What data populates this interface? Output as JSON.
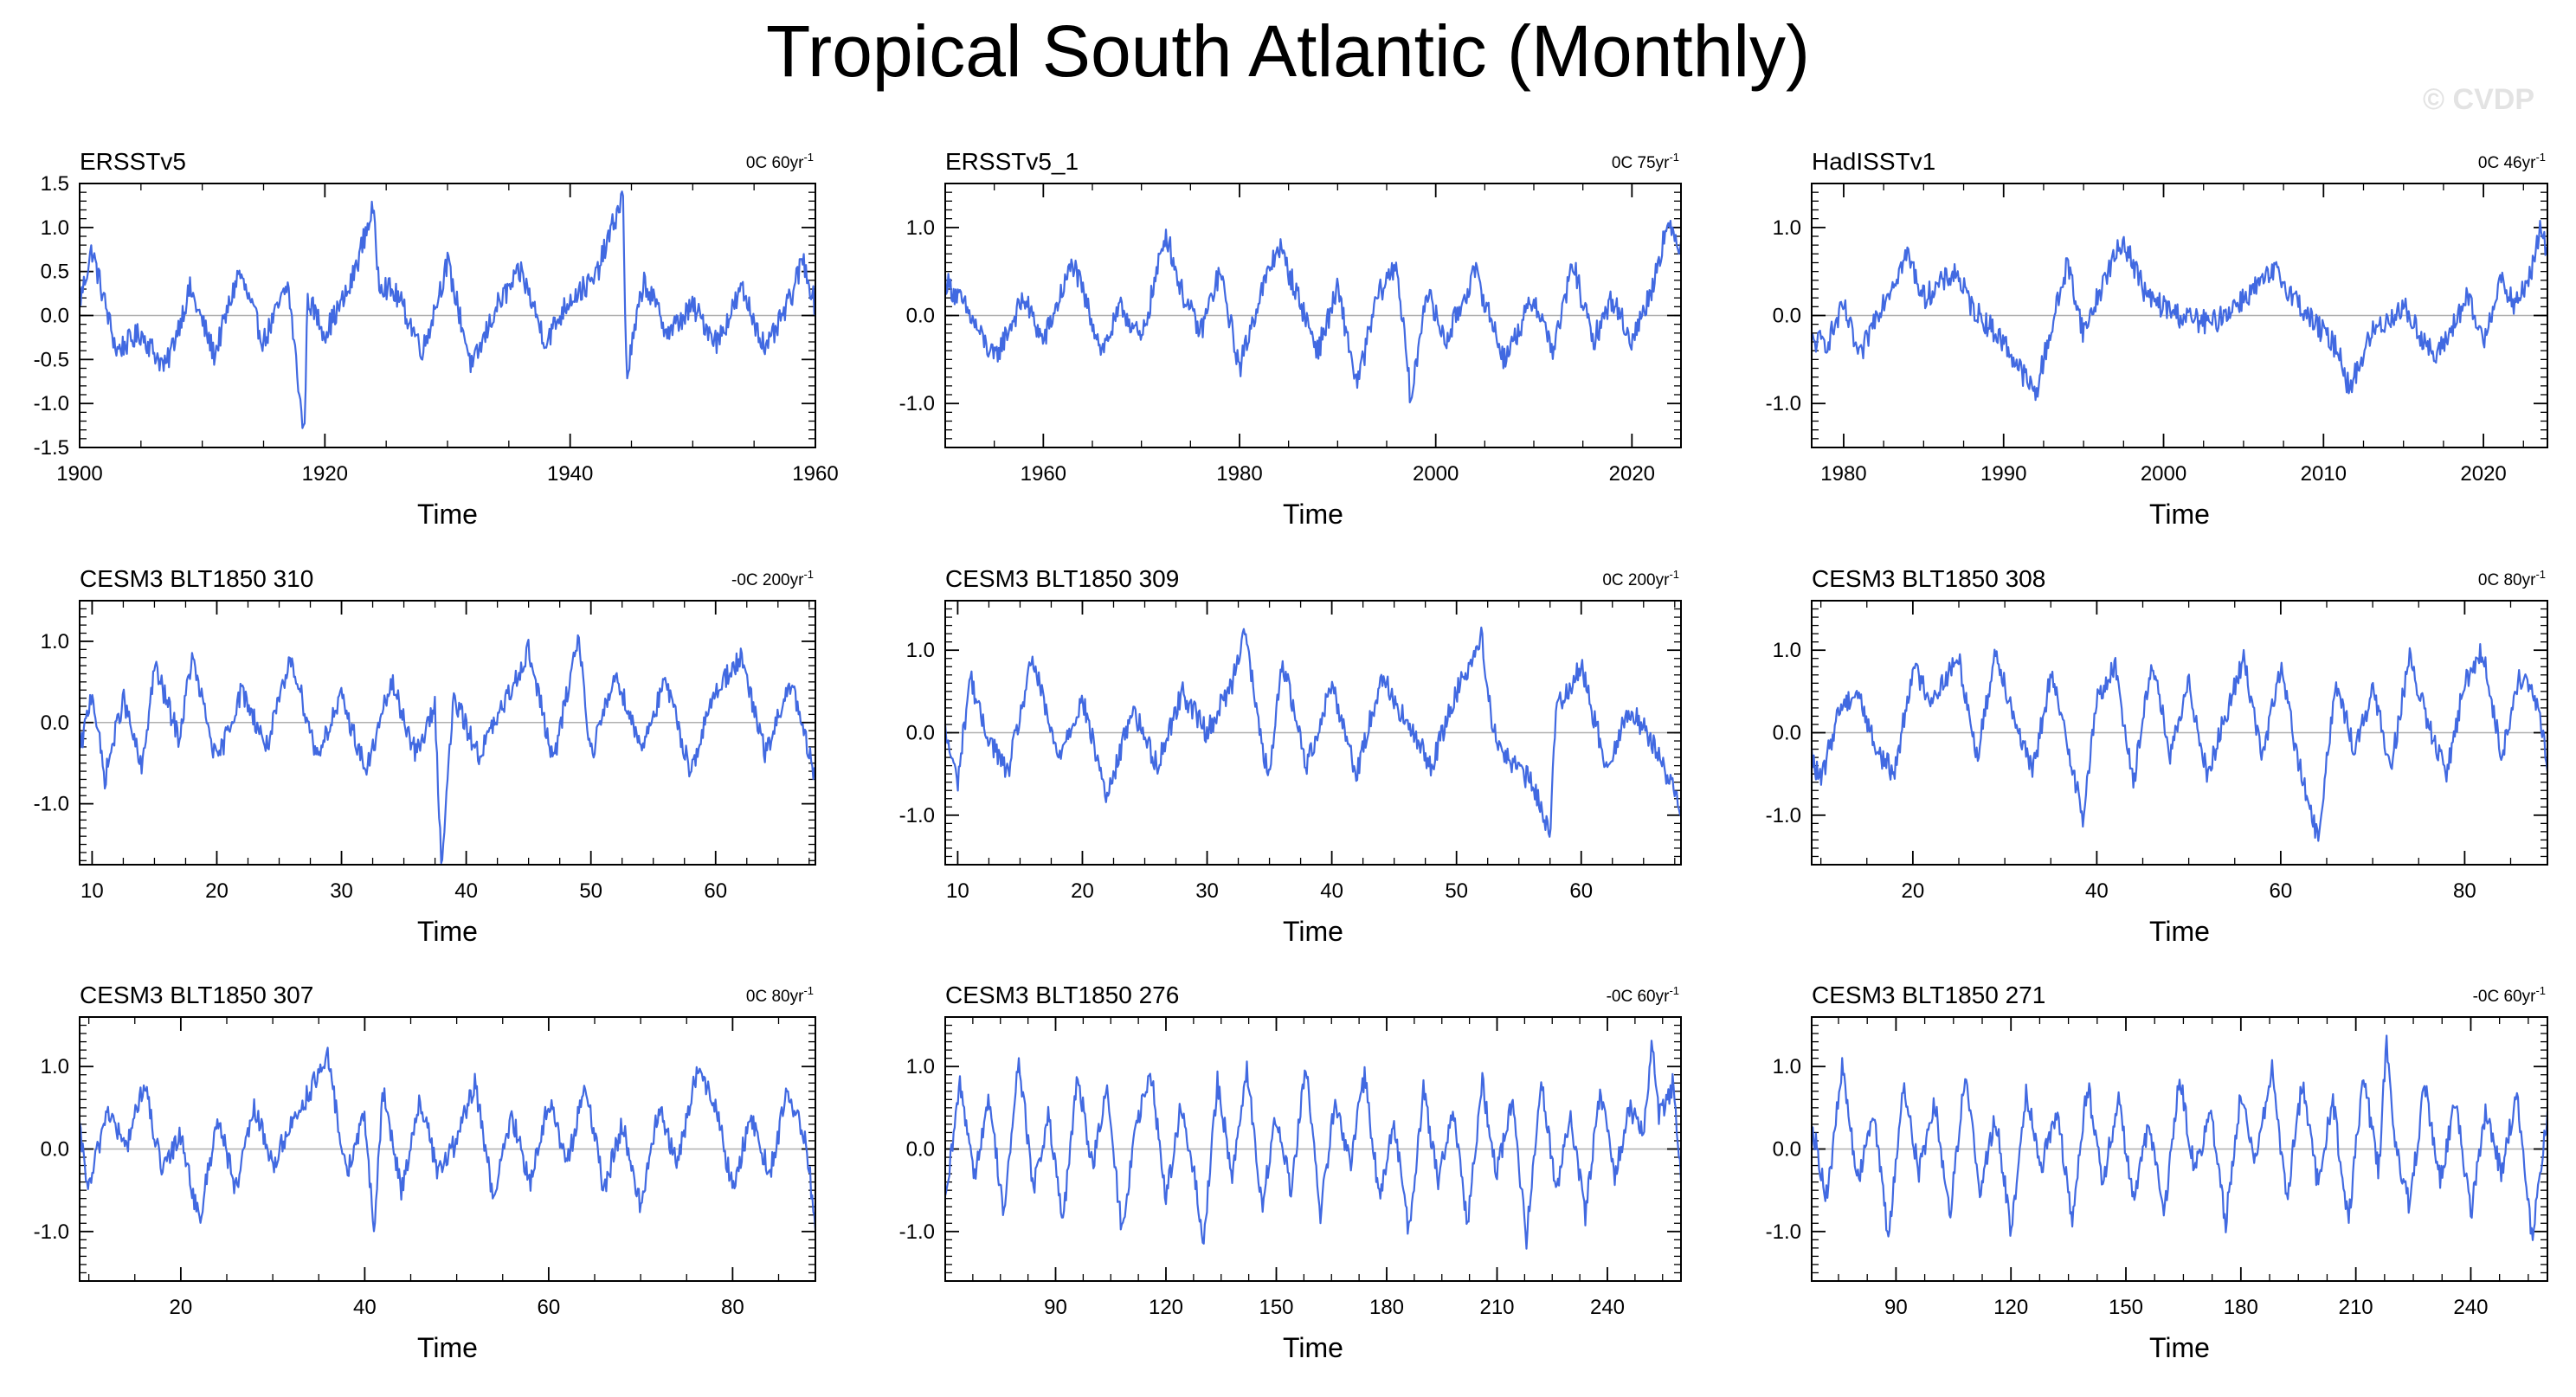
{
  "figure": {
    "title": "Tropical South Atlantic (Monthly)",
    "watermark": "© CVDP",
    "line_color": "#4169e1",
    "zero_line_color": "#b0b0b0"
  },
  "chart_data": [
    {
      "type": "line",
      "title": "ERSSTv5",
      "stat": "0C 60yr",
      "stat_sup": "-1",
      "xlabel": "Time",
      "ylabel": "",
      "xlim": [
        1900,
        1960
      ],
      "ylim": [
        -1.5,
        1.5
      ],
      "xticks": [
        1900,
        1920,
        1940,
        1960
      ],
      "yticks": [
        -1.5,
        -1.0,
        -0.5,
        0.0,
        0.5,
        1.0,
        1.5
      ],
      "yticklabels": [
        "-1.5",
        "-1.0",
        "-0.5",
        "0.0",
        "0.5",
        "1.0",
        "1.5"
      ],
      "series": [
        {
          "name": "ERSSTv5",
          "x": [
            1900,
            1901,
            1903,
            1905,
            1907,
            1909,
            1911,
            1913,
            1915,
            1917,
            1918.3,
            1918.6,
            1920,
            1922,
            1923.9,
            1924.4,
            1926,
            1928,
            1930,
            1932,
            1934,
            1936,
            1938,
            1940,
            1942,
            1944.3,
            1944.6,
            1946,
            1948,
            1950,
            1952,
            1954,
            1956,
            1958,
            1959,
            1960
          ],
          "values": [
            0.15,
            0.75,
            -0.4,
            -0.2,
            -0.6,
            0.3,
            -0.45,
            0.5,
            -0.3,
            0.35,
            -1.4,
            0.2,
            -0.2,
            0.3,
            1.22,
            0.4,
            0.2,
            -0.4,
            0.6,
            -0.6,
            0.1,
            0.5,
            -0.3,
            0.2,
            0.4,
            1.37,
            -0.7,
            0.4,
            -0.2,
            0.1,
            -0.3,
            0.3,
            -0.4,
            0.2,
            0.65,
            0.1
          ]
        }
      ]
    },
    {
      "type": "line",
      "title": "ERSSTv5_1",
      "stat": "0C 75yr",
      "stat_sup": "-1",
      "xlabel": "Time",
      "ylabel": "",
      "xlim": [
        1950,
        2025
      ],
      "ylim": [
        -1.5,
        1.5
      ],
      "xticks": [
        1960,
        1980,
        2000,
        2020
      ],
      "yticks": [
        -1.0,
        0.0,
        1.0
      ],
      "yticklabels": [
        "-1.0",
        "0.0",
        "1.0"
      ],
      "series": [
        {
          "name": "ERSSTv5_1",
          "x": [
            1950,
            1952,
            1955,
            1958,
            1960,
            1963,
            1966,
            1968,
            1970,
            1972.5,
            1974,
            1976,
            1978,
            1980,
            1982,
            1984,
            1986,
            1988,
            1990,
            1992,
            1994,
            1996,
            1997.5,
            1999,
            2001,
            2004,
            2007,
            2010,
            2012,
            2014,
            2016,
            2018,
            2020,
            2022,
            2023.5,
            2025
          ],
          "values": [
            0.4,
            0.1,
            -0.5,
            0.2,
            -0.3,
            0.6,
            -0.4,
            0.1,
            -0.3,
            0.95,
            0.3,
            -0.2,
            0.5,
            -0.6,
            0.2,
            0.8,
            0.2,
            -0.4,
            0.3,
            -0.8,
            0.2,
            0.6,
            -1.0,
            0.3,
            -0.3,
            0.5,
            -0.5,
            0.2,
            -0.4,
            0.6,
            -0.3,
            0.2,
            -0.3,
            0.3,
            1.0,
            0.8
          ]
        }
      ]
    },
    {
      "type": "line",
      "title": "HadISSTv1",
      "stat": "0C 46yr",
      "stat_sup": "-1",
      "xlabel": "Time",
      "ylabel": "",
      "xlim": [
        1978,
        2024
      ],
      "ylim": [
        -1.5,
        1.5
      ],
      "xticks": [
        1980,
        1990,
        2000,
        2010,
        2020
      ],
      "yticks": [
        -1.0,
        0.0,
        1.0
      ],
      "yticklabels": [
        "-1.0",
        "0.0",
        "1.0"
      ],
      "series": [
        {
          "name": "HadISSTv1",
          "x": [
            1979,
            1980,
            1981,
            1982,
            1984,
            1985,
            1987,
            1988,
            1990,
            1992,
            1992.5,
            1994,
            1995,
            1996.5,
            1997.5,
            1999,
            2001,
            2003,
            2005,
            2007,
            2009,
            2011,
            2011.6,
            2013,
            2015,
            2017,
            2019,
            2020,
            2021,
            2022,
            2023,
            2023.6,
            2024
          ],
          "values": [
            -0.3,
            0.1,
            -0.5,
            0.0,
            0.7,
            0.2,
            0.5,
            0.1,
            -0.3,
            -0.9,
            -0.5,
            0.6,
            -0.2,
            0.5,
            0.85,
            0.2,
            0.0,
            -0.1,
            0.2,
            0.5,
            0.0,
            -0.4,
            -0.85,
            -0.2,
            0.1,
            -0.5,
            0.2,
            -0.3,
            0.4,
            0.1,
            0.5,
            1.0,
            0.7
          ]
        }
      ]
    },
    {
      "type": "line",
      "title": "CESM3 BLT1850 310",
      "stat": "-0C 200yr",
      "stat_sup": "-1",
      "xlabel": "Time",
      "ylabel": "",
      "xlim": [
        9,
        68
      ],
      "ylim": [
        -1.75,
        1.5
      ],
      "xticks": [
        10,
        20,
        30,
        40,
        50,
        60
      ],
      "yticks": [
        -1.0,
        0.0,
        1.0
      ],
      "yticklabels": [
        "-1.0",
        "0.0",
        "1.0"
      ],
      "series": [
        {
          "name": "CESM3 BLT1850 310",
          "x": [
            9,
            10,
            11,
            12.5,
            14,
            15,
            17,
            18,
            20,
            22,
            24,
            26,
            28,
            30,
            32,
            34,
            36,
            37.5,
            38,
            39,
            41,
            43,
            45,
            47,
            48,
            49,
            50,
            52,
            54,
            56,
            58,
            60,
            62,
            64,
            66,
            68
          ],
          "values": [
            -0.4,
            0.4,
            -0.7,
            0.3,
            -0.6,
            0.7,
            -0.2,
            0.8,
            -0.5,
            0.4,
            -0.3,
            0.8,
            -0.4,
            0.3,
            -0.6,
            0.5,
            -0.4,
            0.2,
            -1.75,
            0.3,
            -0.4,
            0.2,
            0.9,
            -0.5,
            0.3,
            1.08,
            -0.4,
            0.6,
            -0.3,
            0.5,
            -0.6,
            0.4,
            0.8,
            -0.4,
            0.5,
            -0.7
          ]
        }
      ]
    },
    {
      "type": "line",
      "title": "CESM3 BLT1850 309",
      "stat": "0C 200yr",
      "stat_sup": "-1",
      "xlabel": "Time",
      "ylabel": "",
      "xlim": [
        9,
        68
      ],
      "ylim": [
        -1.6,
        1.6
      ],
      "xticks": [
        10,
        20,
        30,
        40,
        50,
        60
      ],
      "yticks": [
        -1.0,
        0.0,
        1.0
      ],
      "yticklabels": [
        "-1.0",
        "0.0",
        "1.0"
      ],
      "series": [
        {
          "name": "CESM3 BLT1850 309",
          "x": [
            9,
            10,
            11,
            12,
            14,
            16,
            18,
            20,
            22,
            24,
            26,
            28,
            30,
            32,
            33,
            34,
            35,
            36,
            38,
            40,
            42,
            44,
            46,
            48,
            50,
            52,
            53,
            54,
            56,
            57.5,
            58,
            60,
            62,
            64,
            66,
            68
          ],
          "values": [
            0.0,
            -0.6,
            0.7,
            0.1,
            -0.5,
            0.9,
            -0.3,
            0.4,
            -0.8,
            0.3,
            -0.4,
            0.5,
            0.0,
            0.6,
            1.3,
            0.2,
            -0.6,
            0.9,
            -0.4,
            0.6,
            -0.5,
            0.7,
            0.1,
            -0.4,
            0.5,
            1.15,
            0.0,
            -0.3,
            -0.6,
            -1.2,
            0.3,
            0.8,
            -0.4,
            0.3,
            -0.2,
            -0.9
          ]
        }
      ]
    },
    {
      "type": "line",
      "title": "CESM3 BLT1850 308",
      "stat": "0C 80yr",
      "stat_sup": "-1",
      "xlabel": "Time",
      "ylabel": "",
      "xlim": [
        9,
        89
      ],
      "ylim": [
        -1.6,
        1.6
      ],
      "xticks": [
        20,
        40,
        60,
        80
      ],
      "yticks": [
        -1.0,
        0.0,
        1.0
      ],
      "yticklabels": [
        "-1.0",
        "0.0",
        "1.0"
      ],
      "series": [
        {
          "name": "CESM3 BLT1850 308",
          "x": [
            9,
            10,
            12,
            14,
            16,
            18,
            20,
            22,
            25,
            27,
            29,
            31,
            33,
            35,
            37,
            38.5,
            40,
            42,
            44,
            46,
            48,
            50,
            52,
            54,
            56,
            58,
            60,
            62,
            64,
            66,
            68,
            70,
            72,
            74,
            76,
            78,
            80,
            82,
            84,
            86,
            88,
            89
          ],
          "values": [
            -0.3,
            -0.6,
            0.3,
            0.5,
            -0.2,
            -0.5,
            0.8,
            0.4,
            0.9,
            -0.3,
            1.0,
            0.2,
            -0.5,
            0.7,
            -0.2,
            -1.05,
            0.4,
            0.8,
            -0.6,
            0.9,
            -0.3,
            0.6,
            -0.5,
            0.2,
            0.9,
            -0.3,
            0.8,
            -0.4,
            -1.3,
            0.6,
            -0.2,
            0.5,
            -0.4,
            0.9,
            0.1,
            -0.5,
            0.6,
            1.0,
            -0.3,
            0.7,
            0.3,
            -0.4
          ]
        }
      ]
    },
    {
      "type": "line",
      "title": "CESM3 BLT1850 307",
      "stat": "0C 80yr",
      "stat_sup": "-1",
      "xlabel": "Time",
      "ylabel": "",
      "xlim": [
        9,
        89
      ],
      "ylim": [
        -1.6,
        1.6
      ],
      "xticks": [
        20,
        40,
        60,
        80
      ],
      "yticks": [
        -1.0,
        0.0,
        1.0
      ],
      "yticklabels": [
        "-1.0",
        "0.0",
        "1.0"
      ],
      "series": [
        {
          "name": "CESM3 BLT1850 307",
          "x": [
            9,
            10,
            12,
            14,
            16,
            18,
            20,
            22,
            24,
            26,
            28,
            30,
            32,
            34,
            36,
            38,
            40,
            41,
            42,
            44,
            46,
            48,
            50,
            52,
            54,
            56,
            58,
            60,
            62,
            64,
            66,
            68,
            70,
            72,
            74,
            76,
            78,
            80,
            82,
            84,
            86,
            88,
            89
          ],
          "values": [
            0.2,
            -0.5,
            0.5,
            0.0,
            0.8,
            -0.3,
            0.2,
            -0.9,
            0.4,
            -0.5,
            0.5,
            -0.2,
            0.3,
            0.7,
            1.1,
            -0.3,
            0.4,
            -1.0,
            0.7,
            -0.5,
            0.6,
            -0.3,
            0.1,
            0.8,
            -0.6,
            0.4,
            -0.4,
            0.6,
            -0.2,
            0.8,
            -0.5,
            0.3,
            -0.7,
            0.5,
            -0.2,
            0.9,
            0.6,
            -0.5,
            0.4,
            -0.3,
            0.7,
            0.1,
            -0.95
          ]
        }
      ]
    },
    {
      "type": "line",
      "title": "CESM3 BLT1850 276",
      "stat": "-0C 60yr",
      "stat_sup": "-1",
      "xlabel": "Time",
      "ylabel": "",
      "xlim": [
        60,
        260
      ],
      "ylim": [
        -1.6,
        1.6
      ],
      "xticks": [
        90,
        120,
        150,
        180,
        210,
        240
      ],
      "yticks": [
        -1.0,
        0.0,
        1.0
      ],
      "yticklabels": [
        "-1.0",
        "0.0",
        "1.0"
      ],
      "series": [
        {
          "name": "CESM3 BLT1850 276",
          "x": [
            60,
            64,
            68,
            72,
            76,
            80,
            84,
            88,
            92,
            96,
            100,
            104,
            108,
            112,
            116,
            120,
            124,
            128,
            130,
            134,
            138,
            142,
            146,
            150,
            154,
            158,
            162,
            166,
            170,
            174,
            178,
            182,
            186,
            190,
            194,
            198,
            202,
            206,
            210,
            214,
            218,
            222,
            226,
            230,
            234,
            238,
            242,
            246,
            250,
            252,
            254,
            258,
            260
          ],
          "values": [
            -0.7,
            0.8,
            -0.3,
            0.6,
            -0.8,
            1.1,
            -0.5,
            0.4,
            -0.9,
            0.9,
            -0.2,
            0.7,
            -1.0,
            0.3,
            0.9,
            -0.6,
            0.5,
            -0.4,
            -1.2,
            0.8,
            -0.3,
            1.0,
            -0.7,
            0.4,
            -0.5,
            1.0,
            -0.8,
            0.6,
            -0.2,
            0.9,
            -0.6,
            0.3,
            -1.0,
            0.7,
            -0.4,
            0.5,
            -0.9,
            0.8,
            -0.3,
            0.6,
            -1.1,
            0.9,
            -0.5,
            0.4,
            -0.8,
            0.7,
            -0.3,
            0.5,
            0.2,
            1.35,
            0.4,
            0.8,
            -0.4
          ]
        }
      ]
    },
    {
      "type": "line",
      "title": "CESM3 BLT1850 271",
      "stat": "-0C 60yr",
      "stat_sup": "-1",
      "xlabel": "Time",
      "ylabel": "",
      "xlim": [
        68,
        260
      ],
      "ylim": [
        -1.6,
        1.6
      ],
      "xticks": [
        90,
        120,
        150,
        180,
        210,
        240
      ],
      "yticks": [
        -1.0,
        0.0,
        1.0
      ],
      "yticklabels": [
        "-1.0",
        "0.0",
        "1.0"
      ],
      "series": [
        {
          "name": "CESM3 BLT1850 271",
          "x": [
            68,
            72,
            76,
            80,
            84,
            88,
            92,
            96,
            100,
            104,
            108,
            112,
            116,
            120,
            124,
            128,
            132,
            136,
            140,
            144,
            148,
            152,
            156,
            160,
            164,
            168,
            172,
            176,
            180,
            184,
            188,
            192,
            196,
            200,
            204,
            208,
            212,
            216,
            218,
            220,
            224,
            228,
            232,
            236,
            240,
            244,
            248,
            252,
            256,
            260
          ],
          "values": [
            0.3,
            -0.6,
            1.0,
            -0.4,
            0.5,
            -1.1,
            0.8,
            -0.3,
            0.6,
            -0.8,
            0.9,
            -0.5,
            0.4,
            -1.0,
            0.7,
            -0.2,
            0.5,
            -0.9,
            0.8,
            -0.4,
            0.6,
            -0.6,
            0.3,
            -0.8,
            0.9,
            -0.3,
            0.5,
            -0.9,
            0.7,
            -0.2,
            1.0,
            -0.6,
            0.8,
            -0.4,
            0.6,
            -0.9,
            0.9,
            -0.3,
            1.35,
            0.1,
            -0.7,
            0.8,
            -0.4,
            0.6,
            -0.8,
            0.5,
            -0.3,
            0.7,
            -1.1,
            0.4
          ]
        }
      ]
    }
  ]
}
